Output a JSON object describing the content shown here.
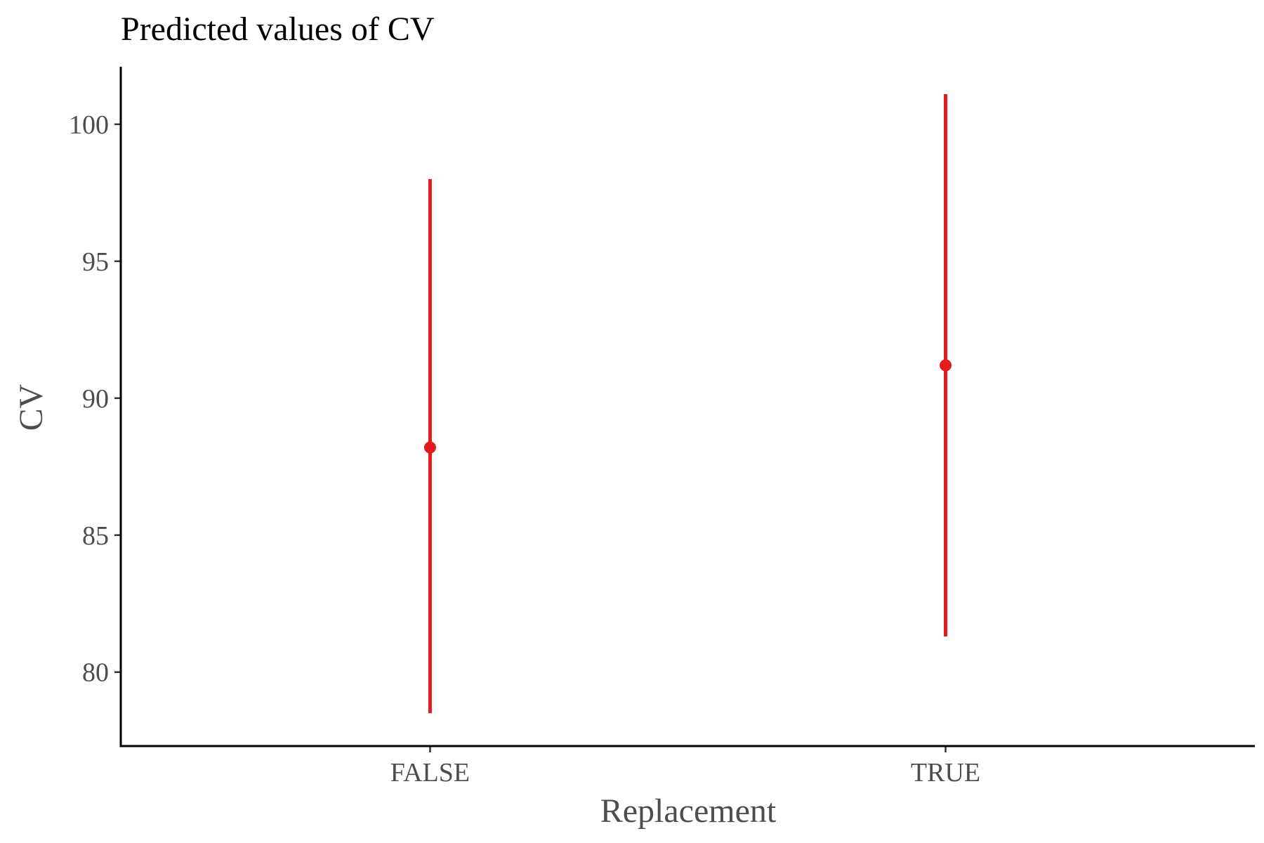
{
  "chart_data": {
    "type": "pointrange",
    "title": "Predicted values of CV",
    "xlabel": "Replacement",
    "ylabel": "CV",
    "categories": [
      "FALSE",
      "TRUE"
    ],
    "series": [
      {
        "color": "#e41a1c",
        "points": [
          {
            "x": "FALSE",
            "y": 88.2,
            "ymin": 78.5,
            "ymax": 98.0
          },
          {
            "x": "TRUE",
            "y": 91.2,
            "ymin": 81.3,
            "ymax": 101.1
          }
        ]
      }
    ],
    "ylim": [
      77.3,
      102.1
    ],
    "yticks": [
      80,
      85,
      90,
      95,
      100
    ],
    "grid": false,
    "legend": "none"
  }
}
